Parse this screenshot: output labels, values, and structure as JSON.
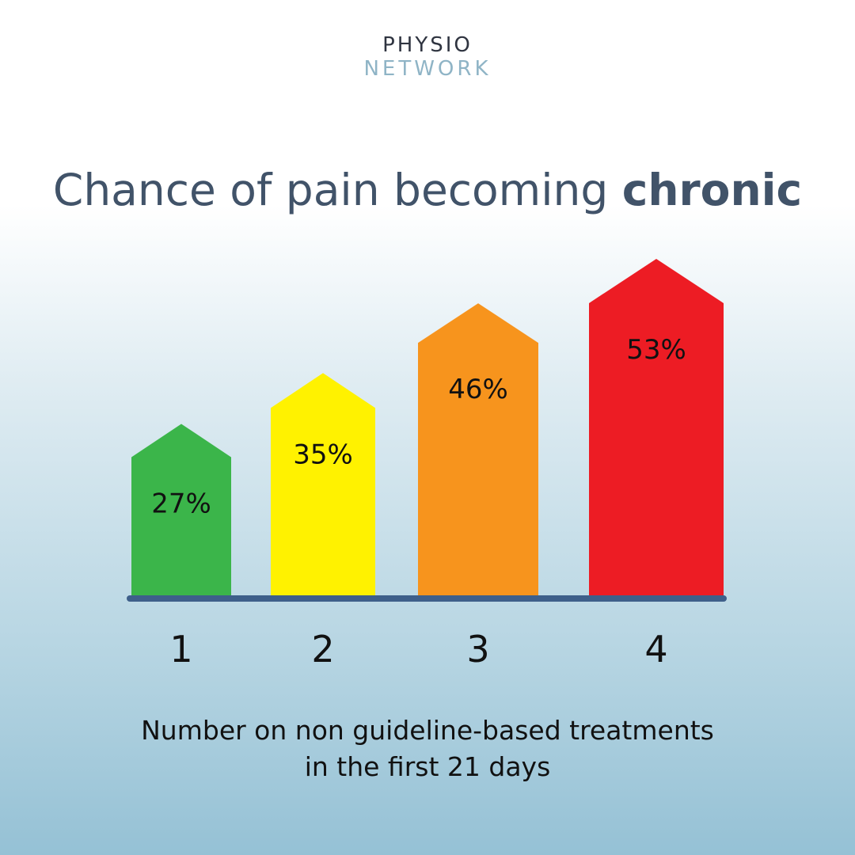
{
  "logo": {
    "line1": "PHYSIO",
    "line2": "NETWORK"
  },
  "title": {
    "regular": "Chance of pain becoming ",
    "bold": "chronic"
  },
  "chart_data": {
    "type": "bar",
    "categories": [
      "1",
      "2",
      "3",
      "4"
    ],
    "values": [
      27,
      35,
      46,
      53
    ],
    "value_labels": [
      "27%",
      "35%",
      "46%",
      "53%"
    ],
    "colors": [
      "#3bb54a",
      "#fff200",
      "#f7941d",
      "#ed1c24"
    ],
    "axis_color": "#3e5f8a",
    "xlabel": {
      "line1": "Number on non guideline-based treatments",
      "line2": "in the first 21 days"
    },
    "ylabel": "",
    "ylim": [
      0,
      60
    ],
    "grid": false
  }
}
